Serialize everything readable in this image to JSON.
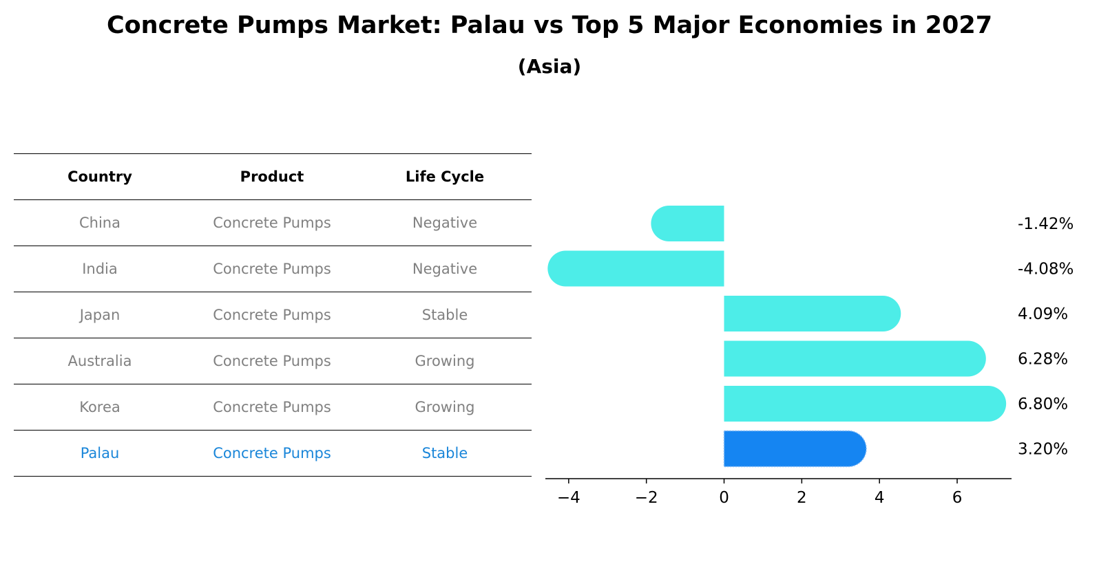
{
  "header": {
    "title": "Concrete Pumps Market: Palau vs Top 5 Major Economies in 2027",
    "subtitle": "(Asia)"
  },
  "table": {
    "columns": [
      "Country",
      "Product",
      "Life Cycle"
    ],
    "rows": [
      {
        "country": "China",
        "product": "Concrete Pumps",
        "life_cycle": "Negative",
        "highlight": false
      },
      {
        "country": "India",
        "product": "Concrete Pumps",
        "life_cycle": "Negative",
        "highlight": false
      },
      {
        "country": "Japan",
        "product": "Concrete Pumps",
        "life_cycle": "Stable",
        "highlight": false
      },
      {
        "country": "Australia",
        "product": "Concrete Pumps",
        "life_cycle": "Growing",
        "highlight": false
      },
      {
        "country": "Korea",
        "product": "Concrete Pumps",
        "life_cycle": "Growing",
        "highlight": false
      },
      {
        "country": "Palau",
        "product": "Concrete Pumps",
        "life_cycle": "Stable",
        "highlight": true
      }
    ]
  },
  "colors": {
    "bar": "#4dede8",
    "highlight_bar": "#1585f2",
    "muted_text": "#808080",
    "highlight_text": "#1a86d9"
  },
  "chart_data": {
    "type": "bar",
    "orientation": "horizontal",
    "categories": [
      "China",
      "India",
      "Japan",
      "Australia",
      "Korea",
      "Palau"
    ],
    "values": [
      -1.42,
      -4.08,
      4.09,
      6.28,
      6.8,
      3.2
    ],
    "value_labels": [
      "-1.42%",
      "-4.08%",
      "4.09%",
      "6.28%",
      "6.80%",
      "3.20%"
    ],
    "highlight_category": "Palau",
    "xlim": [
      -4.6,
      7.4
    ],
    "xticks": [
      -4,
      -2,
      0,
      2,
      4,
      6
    ],
    "xtick_labels": [
      "−4",
      "−2",
      "0",
      "2",
      "4",
      "6"
    ],
    "xlabel": "",
    "ylabel": "",
    "grid": false
  }
}
